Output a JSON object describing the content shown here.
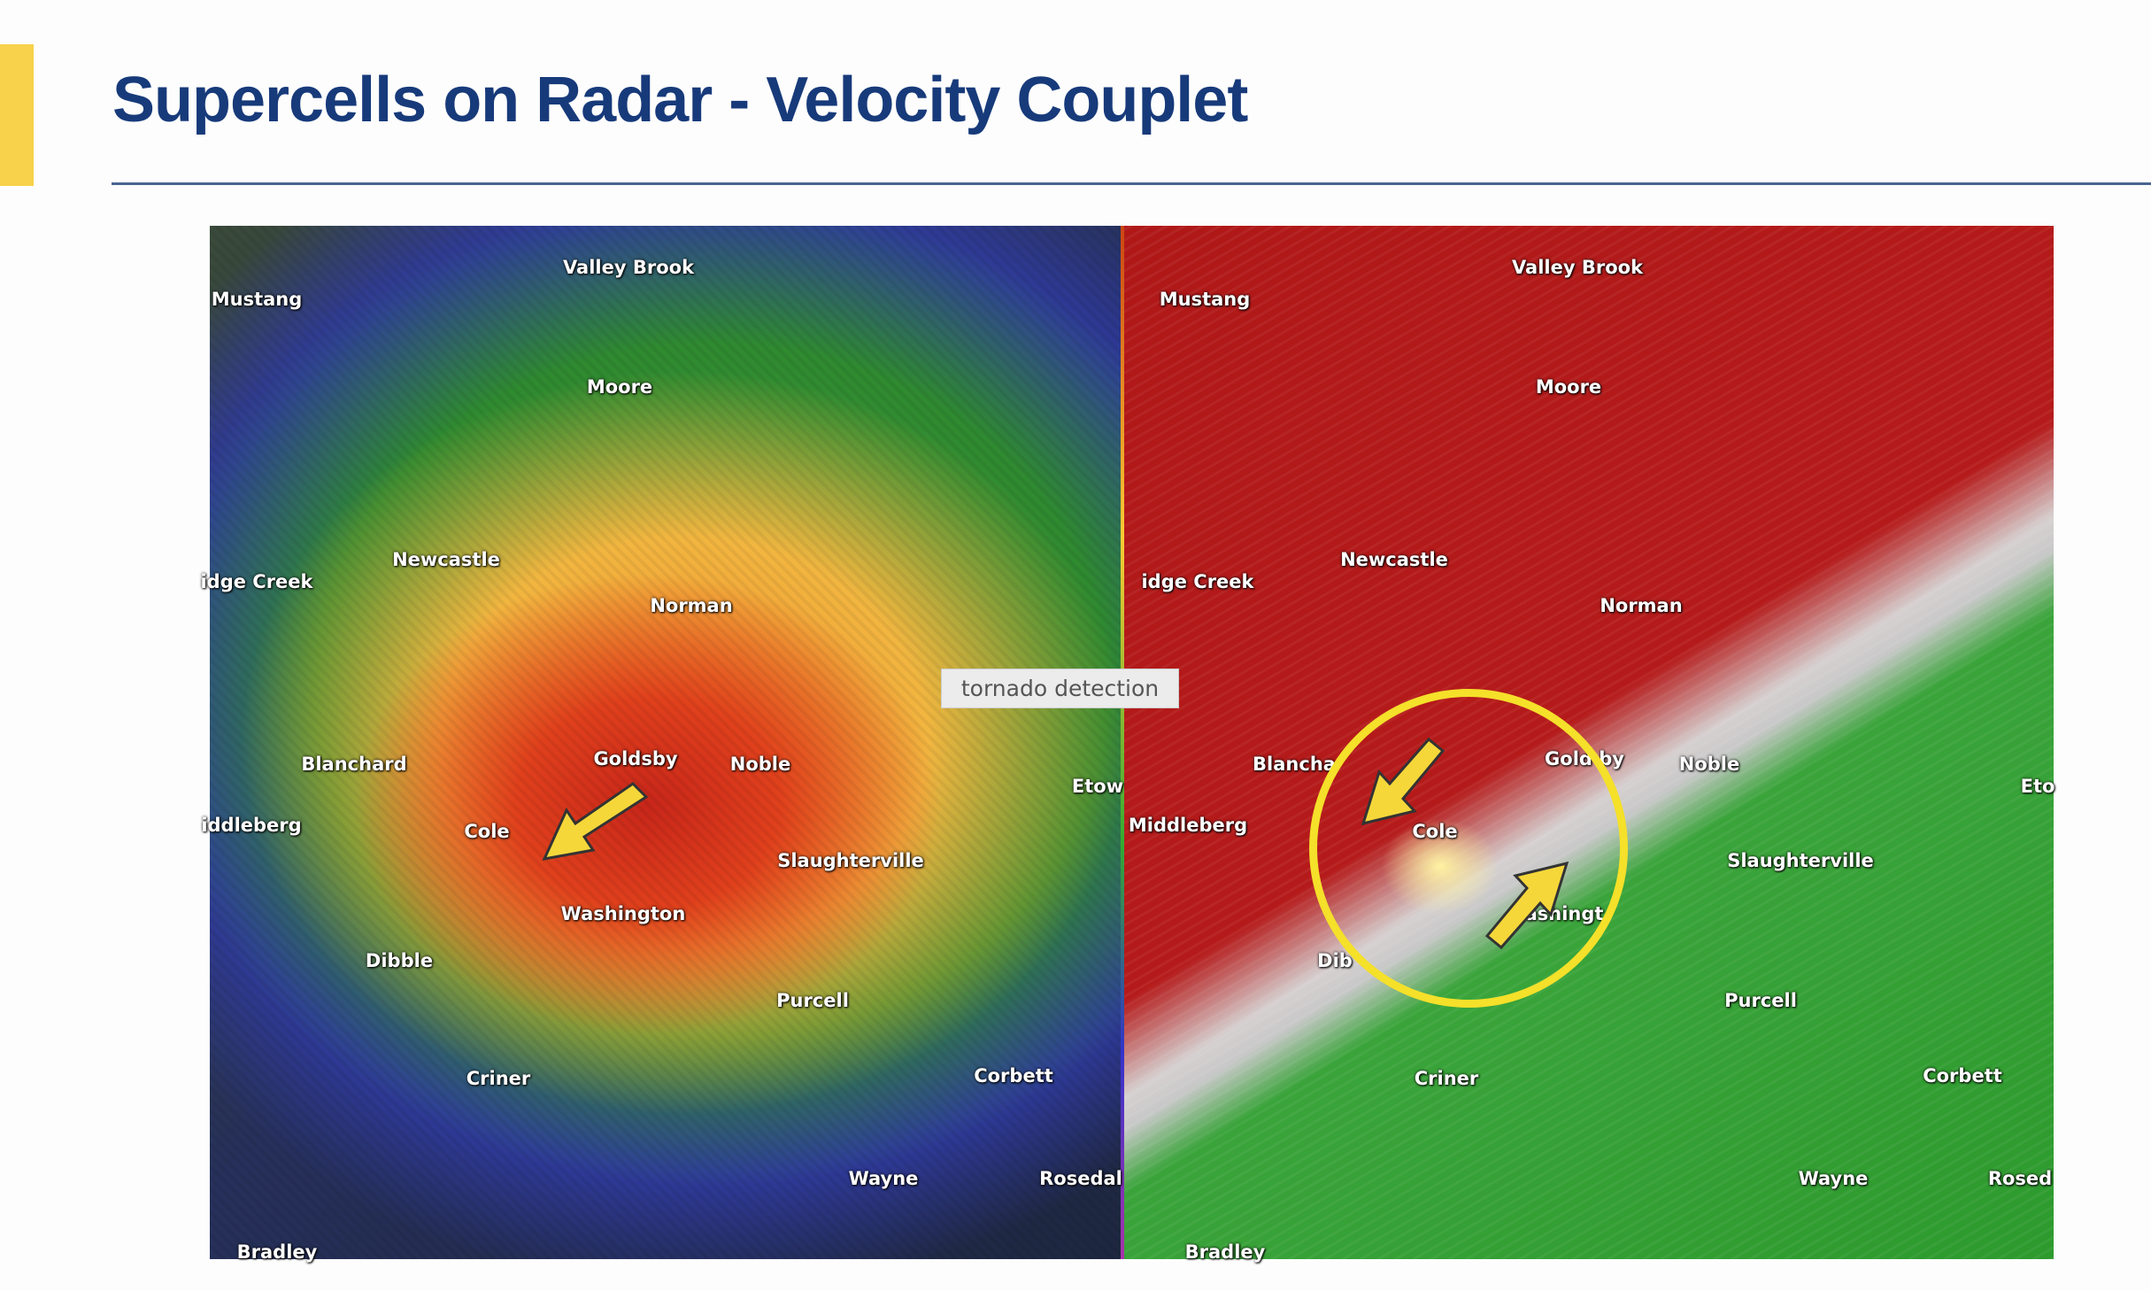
{
  "slide": {
    "title": "Supercells on Radar - Velocity Couplet",
    "accent_color": "#f7d24a",
    "title_color": "#173a7a"
  },
  "tooltip": {
    "text": "tornado detection"
  },
  "left_panel": {
    "labels": [
      "Mustang",
      "Valley Brook",
      "Moore",
      "Newcastle",
      "idge Creek",
      "Norman",
      "Blanchard",
      "Goldsby",
      "Noble",
      "Etow",
      "iddleberg",
      "Cole",
      "Slaughterville",
      "Washington",
      "Dibble",
      "Purcell",
      "Criner",
      "Corbett",
      "Wayne",
      "Rosedal",
      "Bradley"
    ]
  },
  "right_panel": {
    "labels": [
      "Mustang",
      "Valley Brook",
      "Moore",
      "Newcastle",
      "idge Creek",
      "Norman",
      "Blancha",
      "Gold by",
      "Noble",
      "Eto",
      "Middleberg",
      "Cole",
      "Slaughterville",
      "ashingt",
      "Dib",
      "Purcell",
      "Criner",
      "Corbett",
      "Wayne",
      "Rosed",
      "Bradley"
    ]
  },
  "annotation_color": "#f5e02a"
}
